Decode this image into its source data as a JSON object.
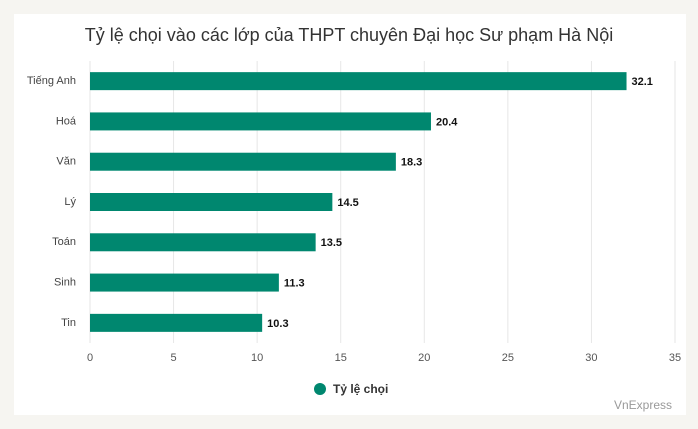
{
  "chart_data": {
    "type": "bar",
    "orientation": "horizontal",
    "title": "Tỷ lệ chọi vào các lớp của THPT chuyên Đại học Sư phạm Hà Nội",
    "categories": [
      "Tiếng Anh",
      "Hoá",
      "Văn",
      "Lý",
      "Toán",
      "Sinh",
      "Tin"
    ],
    "series": [
      {
        "name": "Tỷ lệ chọi",
        "color": "#00876f",
        "values": [
          32.1,
          20.4,
          18.3,
          14.5,
          13.5,
          11.3,
          10.3
        ]
      }
    ],
    "xlim": [
      0,
      35
    ],
    "xticks": [
      0,
      5,
      10,
      15,
      20,
      25,
      30,
      35
    ],
    "grid": true,
    "legend": "bottom",
    "source": "VnExpress"
  }
}
